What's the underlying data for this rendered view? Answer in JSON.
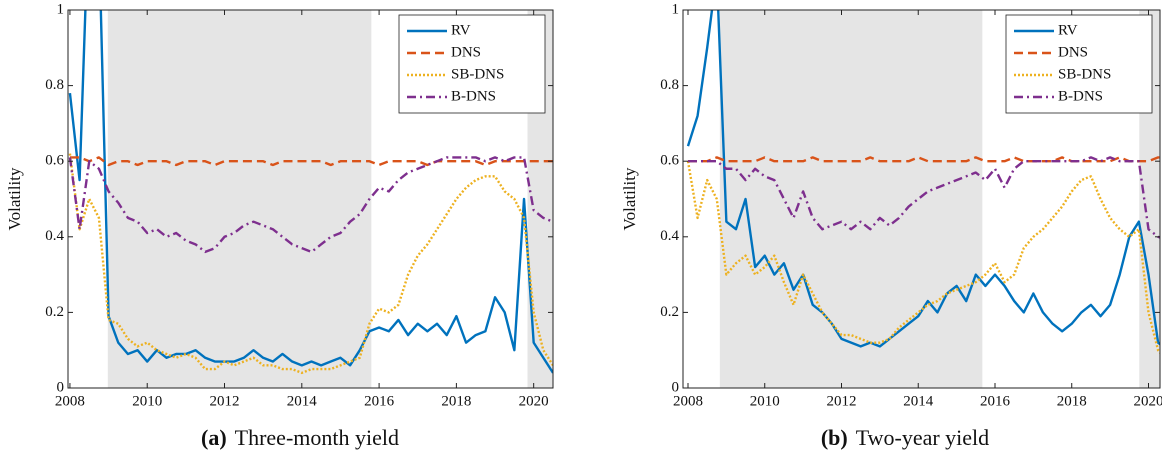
{
  "chart_data": [
    {
      "type": "line",
      "y_label": "Volatility",
      "caption_label": "(a)",
      "caption": "Three-month yield",
      "legend_loc": "upper right",
      "xlim": [
        2007.95,
        2020.5
      ],
      "xticks": [
        2008,
        2010,
        2012,
        2014,
        2016,
        2018,
        2020
      ],
      "ylim": [
        0,
        1
      ],
      "yticks": [
        0,
        0.2,
        0.4,
        0.6,
        0.8,
        1
      ],
      "shaded_regions": [
        [
          2008.98,
          2015.8
        ],
        [
          2019.84,
          2020.5
        ]
      ],
      "x": [
        2008,
        2008.25,
        2008.5,
        2008.75,
        2009,
        2009.25,
        2009.5,
        2009.75,
        2010,
        2010.25,
        2010.5,
        2010.75,
        2011,
        2011.25,
        2011.5,
        2011.75,
        2012,
        2012.25,
        2012.5,
        2012.75,
        2013,
        2013.25,
        2013.5,
        2013.75,
        2014,
        2014.25,
        2014.5,
        2014.75,
        2015,
        2015.25,
        2015.5,
        2015.75,
        2016,
        2016.25,
        2016.5,
        2016.75,
        2017,
        2017.25,
        2017.5,
        2017.75,
        2018,
        2018.25,
        2018.5,
        2018.75,
        2019,
        2019.25,
        2019.5,
        2019.75,
        2020,
        2020.25,
        2020.5
      ],
      "series": [
        {
          "name": "RV",
          "color": "#0072bd",
          "line_style": "solid",
          "values": [
            0.78,
            0.55,
            1.3,
            1.2,
            0.19,
            0.12,
            0.09,
            0.1,
            0.07,
            0.1,
            0.08,
            0.09,
            0.09,
            0.1,
            0.08,
            0.07,
            0.07,
            0.07,
            0.08,
            0.1,
            0.08,
            0.07,
            0.09,
            0.07,
            0.06,
            0.07,
            0.06,
            0.07,
            0.08,
            0.06,
            0.1,
            0.15,
            0.16,
            0.15,
            0.18,
            0.14,
            0.17,
            0.15,
            0.17,
            0.14,
            0.19,
            0.12,
            0.14,
            0.15,
            0.24,
            0.2,
            0.1,
            0.5,
            0.12,
            0.08,
            0.04
          ]
        },
        {
          "name": "DNS",
          "color": "#d95319",
          "line_style": "dashed",
          "values": [
            0.61,
            0.61,
            0.6,
            0.61,
            0.59,
            0.6,
            0.6,
            0.59,
            0.6,
            0.6,
            0.6,
            0.59,
            0.6,
            0.6,
            0.6,
            0.59,
            0.6,
            0.6,
            0.6,
            0.6,
            0.6,
            0.59,
            0.6,
            0.6,
            0.6,
            0.6,
            0.6,
            0.59,
            0.6,
            0.6,
            0.6,
            0.6,
            0.59,
            0.6,
            0.6,
            0.6,
            0.6,
            0.59,
            0.6,
            0.6,
            0.6,
            0.6,
            0.6,
            0.59,
            0.6,
            0.6,
            0.6,
            0.6,
            0.6,
            0.6,
            0.6
          ]
        },
        {
          "name": "SB-DNS",
          "color": "#edb120",
          "line_style": "dotted",
          "values": [
            0.62,
            0.42,
            0.5,
            0.45,
            0.18,
            0.17,
            0.13,
            0.11,
            0.12,
            0.1,
            0.09,
            0.08,
            0.09,
            0.08,
            0.05,
            0.05,
            0.07,
            0.06,
            0.07,
            0.08,
            0.06,
            0.06,
            0.05,
            0.05,
            0.04,
            0.05,
            0.05,
            0.05,
            0.06,
            0.07,
            0.08,
            0.17,
            0.21,
            0.2,
            0.22,
            0.3,
            0.35,
            0.38,
            0.42,
            0.46,
            0.5,
            0.53,
            0.55,
            0.56,
            0.56,
            0.52,
            0.5,
            0.45,
            0.2,
            0.1,
            0.06
          ]
        },
        {
          "name": "B-DNS",
          "color": "#7e2f8e",
          "line_style": "dashdot",
          "values": [
            0.61,
            0.42,
            0.6,
            0.58,
            0.52,
            0.49,
            0.45,
            0.44,
            0.41,
            0.42,
            0.4,
            0.41,
            0.39,
            0.38,
            0.36,
            0.37,
            0.4,
            0.41,
            0.43,
            0.44,
            0.43,
            0.42,
            0.4,
            0.38,
            0.37,
            0.36,
            0.38,
            0.4,
            0.41,
            0.44,
            0.46,
            0.5,
            0.53,
            0.52,
            0.55,
            0.57,
            0.58,
            0.59,
            0.6,
            0.61,
            0.61,
            0.61,
            0.61,
            0.6,
            0.61,
            0.6,
            0.61,
            0.61,
            0.47,
            0.45,
            0.44
          ]
        }
      ]
    },
    {
      "type": "line",
      "y_label": "Volatility",
      "caption_label": "(b)",
      "caption": "Two-year yield",
      "legend_loc": "upper right",
      "xlim": [
        2007.87,
        2020.3
      ],
      "xticks": [
        2008,
        2010,
        2012,
        2014,
        2016,
        2018,
        2020
      ],
      "ylim": [
        0,
        1
      ],
      "yticks": [
        0,
        0.2,
        0.4,
        0.6,
        0.8,
        1
      ],
      "shaded_regions": [
        [
          2008.83,
          2015.67
        ],
        [
          2019.76,
          2020.3
        ]
      ],
      "x": [
        2008,
        2008.25,
        2008.5,
        2008.75,
        2009,
        2009.25,
        2009.5,
        2009.75,
        2010,
        2010.25,
        2010.5,
        2010.75,
        2011,
        2011.25,
        2011.5,
        2011.75,
        2012,
        2012.25,
        2012.5,
        2012.75,
        2013,
        2013.25,
        2013.5,
        2013.75,
        2014,
        2014.25,
        2014.5,
        2014.75,
        2015,
        2015.25,
        2015.5,
        2015.75,
        2016,
        2016.25,
        2016.5,
        2016.75,
        2017,
        2017.25,
        2017.5,
        2017.75,
        2018,
        2018.25,
        2018.5,
        2018.75,
        2019,
        2019.25,
        2019.5,
        2019.75,
        2020,
        2020.25,
        2020.5
      ],
      "series": [
        {
          "name": "RV",
          "color": "#0072bd",
          "line_style": "solid",
          "values": [
            0.64,
            0.72,
            0.9,
            1.1,
            0.44,
            0.42,
            0.5,
            0.32,
            0.35,
            0.3,
            0.33,
            0.26,
            0.3,
            0.22,
            0.2,
            0.17,
            0.13,
            0.12,
            0.11,
            0.12,
            0.11,
            0.13,
            0.15,
            0.17,
            0.19,
            0.23,
            0.2,
            0.25,
            0.27,
            0.23,
            0.3,
            0.27,
            0.3,
            0.27,
            0.23,
            0.2,
            0.25,
            0.2,
            0.17,
            0.15,
            0.17,
            0.2,
            0.22,
            0.19,
            0.22,
            0.3,
            0.4,
            0.44,
            0.3,
            0.12,
            0.1
          ]
        },
        {
          "name": "DNS",
          "color": "#d95319",
          "line_style": "dashed",
          "values": [
            0.6,
            0.6,
            0.6,
            0.61,
            0.6,
            0.6,
            0.6,
            0.6,
            0.61,
            0.6,
            0.6,
            0.6,
            0.6,
            0.61,
            0.6,
            0.6,
            0.6,
            0.6,
            0.6,
            0.61,
            0.6,
            0.6,
            0.6,
            0.6,
            0.61,
            0.6,
            0.6,
            0.6,
            0.6,
            0.6,
            0.61,
            0.6,
            0.6,
            0.6,
            0.61,
            0.6,
            0.6,
            0.6,
            0.6,
            0.61,
            0.6,
            0.6,
            0.6,
            0.6,
            0.6,
            0.61,
            0.6,
            0.6,
            0.6,
            0.61,
            0.61
          ]
        },
        {
          "name": "SB-DNS",
          "color": "#edb120",
          "line_style": "dotted",
          "values": [
            0.6,
            0.45,
            0.55,
            0.5,
            0.3,
            0.33,
            0.35,
            0.3,
            0.32,
            0.35,
            0.28,
            0.22,
            0.3,
            0.25,
            0.2,
            0.17,
            0.14,
            0.14,
            0.13,
            0.12,
            0.12,
            0.13,
            0.16,
            0.18,
            0.2,
            0.22,
            0.23,
            0.25,
            0.26,
            0.27,
            0.28,
            0.3,
            0.33,
            0.28,
            0.3,
            0.37,
            0.4,
            0.42,
            0.45,
            0.48,
            0.52,
            0.55,
            0.56,
            0.5,
            0.45,
            0.42,
            0.4,
            0.42,
            0.2,
            0.1,
            0.07
          ]
        },
        {
          "name": "B-DNS",
          "color": "#7e2f8e",
          "line_style": "dashdot",
          "values": [
            0.6,
            0.6,
            0.6,
            0.6,
            0.58,
            0.58,
            0.55,
            0.58,
            0.56,
            0.55,
            0.5,
            0.45,
            0.52,
            0.45,
            0.42,
            0.43,
            0.44,
            0.42,
            0.44,
            0.42,
            0.45,
            0.43,
            0.45,
            0.48,
            0.5,
            0.52,
            0.53,
            0.54,
            0.55,
            0.56,
            0.57,
            0.55,
            0.58,
            0.53,
            0.58,
            0.6,
            0.6,
            0.6,
            0.6,
            0.6,
            0.6,
            0.6,
            0.61,
            0.6,
            0.61,
            0.6,
            0.6,
            0.6,
            0.42,
            0.4,
            0.39
          ]
        }
      ]
    }
  ]
}
